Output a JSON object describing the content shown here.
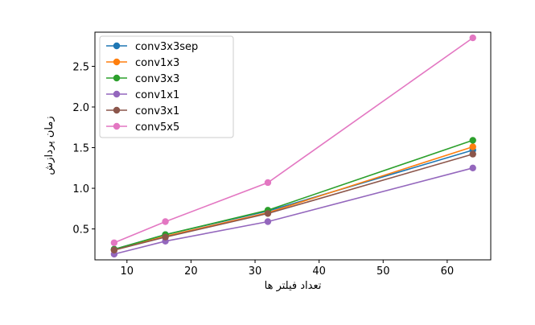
{
  "chart_data": {
    "type": "line",
    "xlabel": "تعداد فیلتر ها",
    "ylabel": "زمان پردازش",
    "x": [
      8,
      16,
      32,
      64
    ],
    "xlim": [
      5,
      66.8
    ],
    "ylim": [
      0.12,
      2.92
    ],
    "xticks": [
      "10",
      "20",
      "30",
      "40",
      "50",
      "60"
    ],
    "yticks": [
      "0.5",
      "1.0",
      "1.5",
      "2.0",
      "2.5"
    ],
    "grid": false,
    "legend_position": "top-left",
    "series": [
      {
        "name": "conv3x3sep",
        "color": "#1f77b4",
        "values": [
          0.25,
          0.43,
          0.72,
          1.47
        ]
      },
      {
        "name": "conv1x3",
        "color": "#ff7f0e",
        "values": [
          0.24,
          0.41,
          0.7,
          1.51
        ]
      },
      {
        "name": "conv3x3",
        "color": "#2ca02c",
        "values": [
          0.25,
          0.43,
          0.73,
          1.59
        ]
      },
      {
        "name": "conv1x1",
        "color": "#9467bd",
        "values": [
          0.19,
          0.35,
          0.59,
          1.25
        ]
      },
      {
        "name": "conv3x1",
        "color": "#8c564b",
        "values": [
          0.24,
          0.4,
          0.69,
          1.42
        ]
      },
      {
        "name": "conv5x5",
        "color": "#e377c2",
        "values": [
          0.33,
          0.59,
          1.07,
          2.85
        ]
      }
    ]
  }
}
